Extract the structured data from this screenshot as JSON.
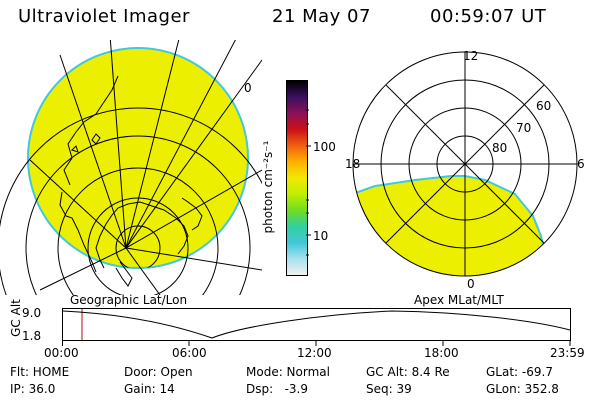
{
  "header": {
    "instrument": "Ultraviolet Imager",
    "date": "21 May 07",
    "time": "00:59:07 UT"
  },
  "colorbar": {
    "unit_label": "photon cm⁻²s⁻¹",
    "ticks": [
      "100",
      "10"
    ],
    "gradient_colors": [
      "#000000",
      "#3a1060",
      "#8a1058",
      "#cc1018",
      "#f06010",
      "#ffb000",
      "#f0ea00",
      "#c0ee00",
      "#70dd20",
      "#30d0a0",
      "#40c8d8",
      "#a8e0f0",
      "#f0f0f0"
    ]
  },
  "geo_map": {
    "label": "Geographic Lat/Lon",
    "partial_tick": "0",
    "fill_color": "#ecf000",
    "edge_color": "#40c8e0"
  },
  "polar_plot": {
    "label": "Apex MLat/MLT",
    "mlt_labels": {
      "top": "12",
      "left": "18",
      "right": "6",
      "bottom": "0"
    },
    "mlat_labels": [
      "60",
      "70",
      "80"
    ],
    "fill_color": "#ecf000"
  },
  "timeline": {
    "axis_label": "GC Alt",
    "y_ticks": [
      "9.0",
      "1.8"
    ],
    "x_ticks": [
      "00:00",
      "06:00",
      "12:00",
      "18:00",
      "23:59"
    ],
    "marker_time": "00:59",
    "marker_color": "#c00000"
  },
  "info_rows": [
    [
      "Flt: HOME",
      "Door: Open",
      "Mode: Normal",
      "GC Alt: 8.4 Re",
      "GLat: -69.7"
    ],
    [
      "IP: 36.0",
      "Gain: 14",
      "Dsp:   -3.9",
      "Seq: 39",
      "GLon: 352.8"
    ]
  ]
}
